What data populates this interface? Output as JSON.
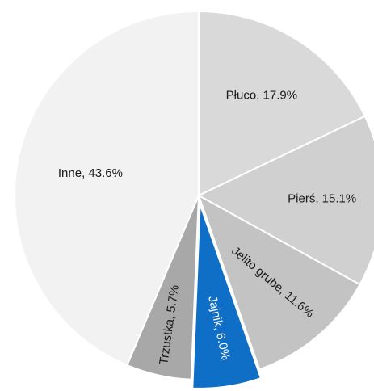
{
  "chart_data": {
    "type": "pie",
    "categories": [
      "Płuco",
      "Pierś",
      "Jelito grube",
      "Jajnik",
      "Trzustka",
      "Inne"
    ],
    "values": [
      17.9,
      15.1,
      11.6,
      6.0,
      5.7,
      43.6
    ],
    "value_labels": [
      "Płuco, 17.9%",
      "Pierś, 15.1%",
      "Jelito grube, 11.6%",
      "Jajnik, 6.0%",
      "Trzustka, 5.7%",
      "Inne, 43.6%"
    ],
    "colors": [
      "#d9d9d9",
      "#d0d0d0",
      "#c3c3c3",
      "#0f6fc6",
      "#a8a8a8",
      "#f2f2f2"
    ],
    "exploded": [
      "Jajnik"
    ]
  }
}
